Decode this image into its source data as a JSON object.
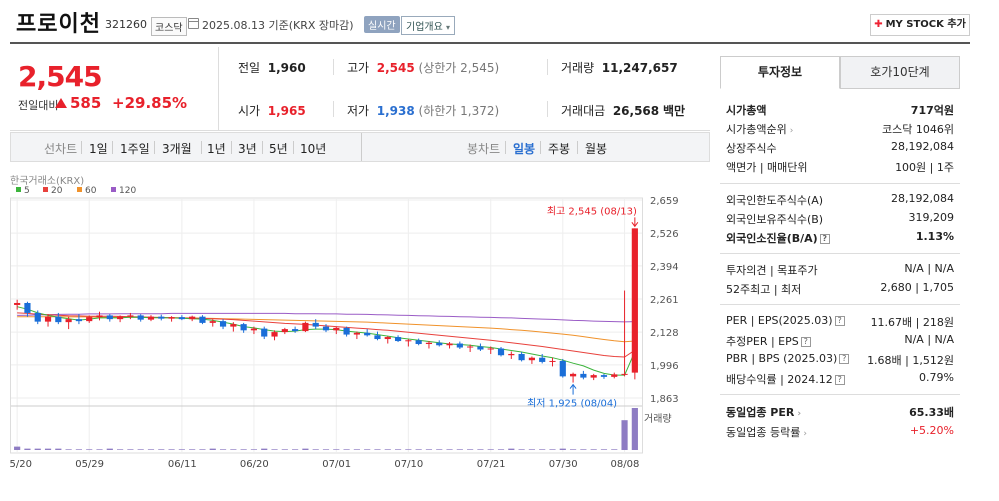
{
  "header": {
    "title": "프로이천",
    "code": "321260",
    "market": "코스닥",
    "date_text": "2025.08.13 기준(KRX 장마감)",
    "realtime_label": "실시간",
    "company_overview_label": "기업개요",
    "mystock_label": "MY STOCK 추가"
  },
  "price": {
    "current": "2,545",
    "change_label": "전일대비",
    "change_value": "585",
    "change_pct": "+29.85%"
  },
  "quote": {
    "prev_label": "전일",
    "prev_value": "1,960",
    "open_label": "시가",
    "open_value": "1,965",
    "high_label": "고가",
    "high_value": "2,545",
    "upper_limit": "(상한가 2,545)",
    "low_label": "저가",
    "low_value": "1,938",
    "lower_limit": "(하한가 1,372)",
    "volume_label": "거래량",
    "volume_value": "11,247,657",
    "amount_label": "거래대금",
    "amount_value": "26,568",
    "amount_unit": "백만"
  },
  "periods": {
    "line_label": "선차트",
    "line_items": [
      "1일",
      "1주일",
      "3개월",
      "1년",
      "3년",
      "5년",
      "10년"
    ],
    "candle_label": "봉차트",
    "candle_items": [
      "일봉",
      "주봉",
      "월봉"
    ],
    "candle_selected": "일봉"
  },
  "chart_data": {
    "type": "candlestick",
    "source_label": "한국거래소(KRX)",
    "legend": [
      {
        "name": "5",
        "color": "#3cb43c"
      },
      {
        "name": "20",
        "color": "#e8413c"
      },
      {
        "name": "60",
        "color": "#f0922b"
      },
      {
        "name": "120",
        "color": "#9a5cc6"
      }
    ],
    "y_ticks": [
      "2,659",
      "2,526",
      "2,394",
      "2,261",
      "2,128",
      "1,996",
      "1,863"
    ],
    "ylim": [
      1863,
      2659
    ],
    "x_ticks": [
      "05/20",
      "05/29",
      "06/11",
      "06/20",
      "07/01",
      "07/10",
      "07/21",
      "07/30",
      "08/08"
    ],
    "high_annotation": "최고 2,545 (08/13)",
    "low_annotation": "최저 1,925 (08/04)",
    "volume_label": "거래량",
    "candles": [
      [
        2237,
        2258,
        2218,
        2245
      ],
      [
        2245,
        2250,
        2190,
        2205
      ],
      [
        2205,
        2215,
        2160,
        2170
      ],
      [
        2170,
        2200,
        2150,
        2190
      ],
      [
        2190,
        2205,
        2160,
        2168
      ],
      [
        2168,
        2190,
        2140,
        2180
      ],
      [
        2180,
        2200,
        2160,
        2172
      ],
      [
        2172,
        2195,
        2165,
        2188
      ],
      [
        2188,
        2210,
        2175,
        2195
      ],
      [
        2195,
        2200,
        2170,
        2180
      ],
      [
        2180,
        2195,
        2168,
        2190
      ],
      [
        2190,
        2205,
        2180,
        2195
      ],
      [
        2195,
        2200,
        2170,
        2178
      ],
      [
        2178,
        2196,
        2172,
        2190
      ],
      [
        2190,
        2198,
        2175,
        2182
      ],
      [
        2182,
        2192,
        2170,
        2188
      ],
      [
        2188,
        2196,
        2176,
        2180
      ],
      [
        2180,
        2194,
        2172,
        2190
      ],
      [
        2190,
        2196,
        2160,
        2165
      ],
      [
        2165,
        2180,
        2150,
        2172
      ],
      [
        2172,
        2180,
        2140,
        2150
      ],
      [
        2150,
        2168,
        2130,
        2160
      ],
      [
        2160,
        2165,
        2125,
        2135
      ],
      [
        2135,
        2150,
        2120,
        2142
      ],
      [
        2142,
        2150,
        2100,
        2110
      ],
      [
        2110,
        2135,
        2095,
        2128
      ],
      [
        2128,
        2145,
        2120,
        2140
      ],
      [
        2140,
        2150,
        2125,
        2132
      ],
      [
        2132,
        2170,
        2128,
        2165
      ],
      [
        2165,
        2180,
        2140,
        2150
      ],
      [
        2150,
        2160,
        2128,
        2135
      ],
      [
        2135,
        2150,
        2120,
        2145
      ],
      [
        2145,
        2150,
        2110,
        2118
      ],
      [
        2118,
        2130,
        2100,
        2125
      ],
      [
        2125,
        2140,
        2110,
        2115
      ],
      [
        2115,
        2130,
        2095,
        2100
      ],
      [
        2100,
        2112,
        2082,
        2108
      ],
      [
        2108,
        2115,
        2088,
        2092
      ],
      [
        2092,
        2100,
        2070,
        2095
      ],
      [
        2095,
        2102,
        2075,
        2080
      ],
      [
        2080,
        2092,
        2062,
        2085
      ],
      [
        2085,
        2095,
        2070,
        2075
      ],
      [
        2075,
        2088,
        2062,
        2082
      ],
      [
        2082,
        2090,
        2060,
        2066
      ],
      [
        2066,
        2078,
        2048,
        2070
      ],
      [
        2070,
        2082,
        2052,
        2058
      ],
      [
        2058,
        2070,
        2040,
        2062
      ],
      [
        2062,
        2068,
        2030,
        2035
      ],
      [
        2035,
        2050,
        2020,
        2040
      ],
      [
        2040,
        2048,
        2010,
        2015
      ],
      [
        2015,
        2030,
        2000,
        2025
      ],
      [
        2025,
        2040,
        2002,
        2008
      ],
      [
        2008,
        2025,
        1990,
        2012
      ],
      [
        2012,
        2020,
        1945,
        1950
      ],
      [
        1950,
        1965,
        1925,
        1960
      ],
      [
        1960,
        1972,
        1938,
        1945
      ],
      [
        1945,
        1960,
        1935,
        1955
      ],
      [
        1955,
        1960,
        1940,
        1948
      ],
      [
        1948,
        1965,
        1942,
        1958
      ],
      [
        1958,
        2295,
        1950,
        1960
      ],
      [
        1965,
        2545,
        1938,
        2545
      ]
    ],
    "volumes": [
      5,
      2,
      2,
      2,
      2,
      1,
      1,
      1,
      1,
      2,
      1,
      1,
      1,
      1,
      1,
      1,
      1,
      1,
      1,
      2,
      1,
      1,
      1,
      1,
      2,
      1,
      1,
      1,
      2,
      1,
      1,
      1,
      1,
      1,
      1,
      1,
      1,
      1,
      1,
      1,
      1,
      1,
      1,
      1,
      1,
      1,
      1,
      1,
      2,
      1,
      1,
      1,
      1,
      2,
      1,
      1,
      1,
      1,
      1,
      44,
      62
    ],
    "ma": {
      "5": [
        2230,
        2220,
        2205,
        2195,
        2188,
        2182,
        2176,
        2180,
        2185,
        2186,
        2185,
        2188,
        2188,
        2186,
        2186,
        2185,
        2184,
        2182,
        2180,
        2175,
        2168,
        2160,
        2150,
        2145,
        2138,
        2132,
        2130,
        2132,
        2138,
        2140,
        2140,
        2138,
        2132,
        2128,
        2124,
        2118,
        2112,
        2105,
        2100,
        2095,
        2090,
        2085,
        2080,
        2078,
        2075,
        2070,
        2066,
        2060,
        2054,
        2048,
        2040,
        2032,
        2025,
        2015,
        2003,
        1992,
        1975,
        1962,
        1955,
        1955,
        2050
      ],
      "20": [
        2205,
        2203,
        2200,
        2198,
        2196,
        2194,
        2193,
        2192,
        2192,
        2192,
        2191,
        2190,
        2189,
        2188,
        2187,
        2186,
        2185,
        2184,
        2183,
        2182,
        2180,
        2178,
        2175,
        2172,
        2169,
        2166,
        2163,
        2161,
        2159,
        2156,
        2153,
        2150,
        2147,
        2144,
        2141,
        2138,
        2135,
        2131,
        2127,
        2123,
        2119,
        2115,
        2111,
        2107,
        2103,
        2099,
        2095,
        2090,
        2085,
        2080,
        2075,
        2070,
        2064,
        2058,
        2052,
        2046,
        2040,
        2034,
        2030,
        2028,
        2055
      ],
      "60": [
        2190,
        2190,
        2190,
        2190,
        2190,
        2189,
        2189,
        2189,
        2188,
        2188,
        2188,
        2188,
        2187,
        2187,
        2186,
        2186,
        2185,
        2185,
        2184,
        2183,
        2182,
        2181,
        2180,
        2179,
        2178,
        2177,
        2176,
        2175,
        2174,
        2173,
        2172,
        2171,
        2170,
        2169,
        2168,
        2166,
        2164,
        2162,
        2160,
        2158,
        2156,
        2154,
        2152,
        2150,
        2148,
        2146,
        2144,
        2141,
        2138,
        2135,
        2132,
        2128,
        2124,
        2120,
        2115,
        2110,
        2104,
        2098,
        2093,
        2089,
        2092
      ],
      "120": [
        2195,
        2196,
        2197,
        2198,
        2199,
        2200,
        2200,
        2201,
        2201,
        2201,
        2202,
        2202,
        2202,
        2202,
        2202,
        2203,
        2203,
        2203,
        2203,
        2203,
        2203,
        2203,
        2203,
        2203,
        2203,
        2203,
        2203,
        2202,
        2202,
        2202,
        2201,
        2201,
        2200,
        2200,
        2199,
        2198,
        2197,
        2196,
        2195,
        2194,
        2193,
        2192,
        2191,
        2190,
        2189,
        2188,
        2187,
        2186,
        2185,
        2183,
        2182,
        2180,
        2179,
        2177,
        2175,
        2174,
        2172,
        2171,
        2170,
        2169,
        2170
      ]
    }
  },
  "invest": {
    "tab_info": "투자정보",
    "tab_quote": "호가10단계",
    "market_cap_label": "시가총액",
    "market_cap_value": "717억원",
    "rank_label": "시가총액순위",
    "rank_value": "코스닥 1046위",
    "shares_label": "상장주식수",
    "shares_value": "28,192,084",
    "face_label": "액면가 | 매매단위",
    "face_value": "100원 | 1주",
    "foreign_limit_label": "외국인한도주식수(A)",
    "foreign_limit_value": "28,192,084",
    "foreign_hold_label": "외국인보유주식수(B)",
    "foreign_hold_value": "319,209",
    "foreign_rate_label": "외국인소진율(B/A)",
    "foreign_rate_value": "1.13%",
    "opinion_label": "투자의견 | 목표주가",
    "opinion_value": "N/A | N/A",
    "w52_label": "52주최고 | 최저",
    "w52_value": "2,680 | 1,705",
    "per_label": "PER | EPS(2025.03)",
    "per_value": "11.67배 | 218원",
    "est_label": "추정PER | EPS",
    "est_value": "N/A | N/A",
    "pbr_label": "PBR | BPS (2025.03)",
    "pbr_value": "1.68배 | 1,512원",
    "div_label": "배당수익률 | 2024.12",
    "div_value": "0.79%",
    "sector_per_label": "동일업종 PER",
    "sector_per_value": "65.33배",
    "sector_chg_label": "동일업종 등락률",
    "sector_chg_value": "+5.20%"
  }
}
